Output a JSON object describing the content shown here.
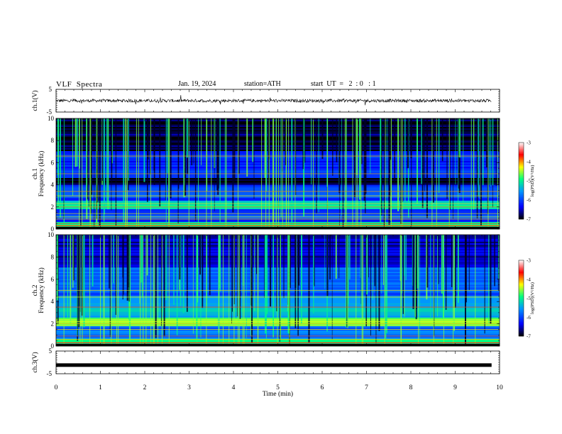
{
  "header": {
    "title": "VLF  Spectra",
    "date": "Jan. 19, 2024",
    "station": "station=ATH",
    "start": "start  UT  =   2  : 0   : 1"
  },
  "chart_data": {
    "type": "heatmap",
    "x_axis": {
      "label": "Time  (min)",
      "range": [
        0,
        10
      ],
      "ticks": [
        "0",
        "1",
        "2",
        "3",
        "4",
        "5",
        "6",
        "7",
        "8",
        "9",
        "10"
      ]
    },
    "panels": [
      {
        "id": "ch1-waveform",
        "type": "line",
        "ylabel": "ch.1(V)",
        "ylim": [
          -5,
          5
        ],
        "ytick_labels": [
          "5",
          "-5"
        ],
        "baseline": 0.0
      },
      {
        "id": "ch1-spectrogram",
        "type": "heatmap",
        "ylabel_line1": "ch.1",
        "ylabel_line2": "Frequency  (kHz)",
        "ylim": [
          0,
          10
        ],
        "ytick_labels": [
          "0",
          "2",
          "4",
          "6",
          "8",
          "10"
        ]
      },
      {
        "id": "ch2-spectrogram",
        "type": "heatmap",
        "ylabel_line1": "ch.2",
        "ylabel_line2": "Frequency  (kHz)",
        "ylim": [
          0,
          10
        ],
        "ytick_labels": [
          "0",
          "2",
          "4",
          "6",
          "8",
          "10"
        ]
      },
      {
        "id": "ch3-waveform",
        "type": "line",
        "ylabel": "ch.3(V)",
        "ylim": [
          -5,
          5
        ],
        "ytick_labels": [
          "5",
          "-5"
        ],
        "baseline": -1.2
      }
    ],
    "colorbar": {
      "label": "log(PSD)(V²/Hz)",
      "range": [
        -7,
        -3
      ],
      "tick_labels": [
        "-3",
        "-4",
        "-5",
        "-6",
        "-7"
      ],
      "colors": [
        "#000000",
        "#0000ff",
        "#00a0ff",
        "#00ff80",
        "#ffff00",
        "#ff0000",
        "#ffffff"
      ]
    }
  }
}
